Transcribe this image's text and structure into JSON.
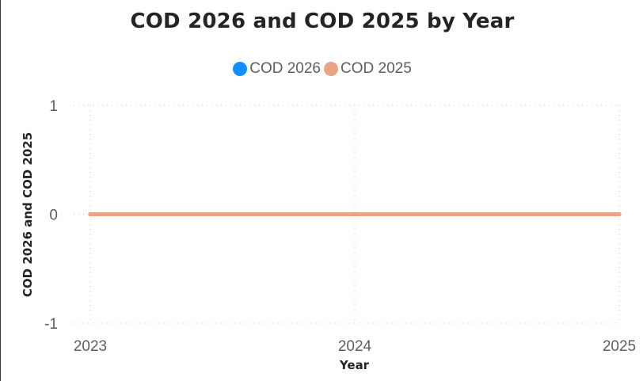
{
  "chart_data": {
    "type": "line",
    "title": "COD 2026 and COD 2025 by Year",
    "xlabel": "Year",
    "ylabel": "COD 2026 and COD 2025",
    "x": [
      2023,
      2024,
      2025
    ],
    "x_ticks": [
      "2023",
      "2024",
      "2025"
    ],
    "y_ticks": [
      "-1",
      "0",
      "1"
    ],
    "ylim": [
      -1,
      1
    ],
    "grid": true,
    "legend_position": "top-center",
    "series": [
      {
        "name": "COD 2026",
        "color": "#118dff",
        "values": [
          0,
          0,
          0
        ]
      },
      {
        "name": "COD 2025",
        "color": "#eaa385",
        "values": [
          0,
          0,
          0
        ]
      }
    ]
  }
}
